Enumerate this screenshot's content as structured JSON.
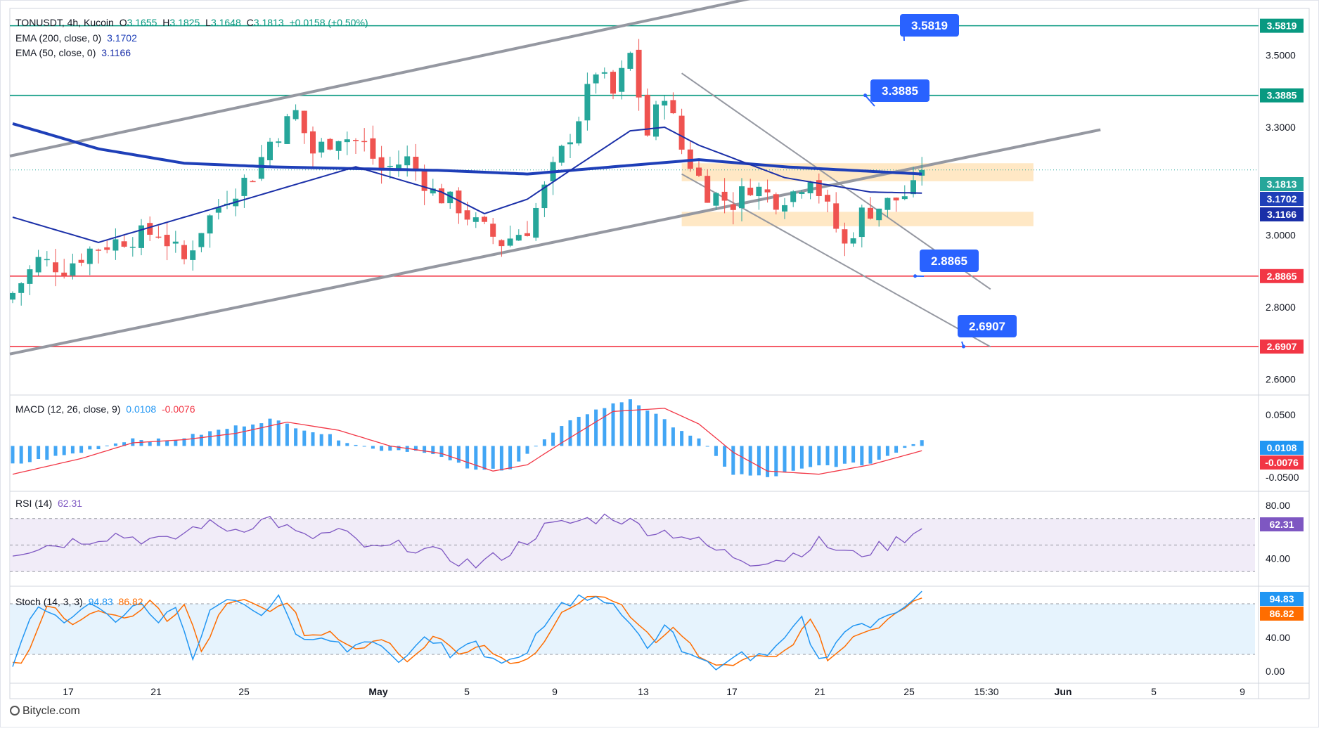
{
  "header": {
    "symbol": "TONUSDT, 4h, Kucoin",
    "open_label": "O",
    "open": "3.1655",
    "high_label": "H",
    "high": "3.1825",
    "low_label": "L",
    "low": "3.1648",
    "close_label": "C",
    "close": "3.1813",
    "change": "+0.0158 (+0.50%)",
    "ema200_label": "EMA (200, close, 0)",
    "ema200_value": "3.1702",
    "ema50_label": "EMA (50, close, 0)",
    "ema50_value": "3.1166"
  },
  "indicators": {
    "macd_label": "MACD (12, 26, close, 9)",
    "macd_value": "0.0108",
    "macd_signal": "-0.0076",
    "rsi_label": "RSI (14)",
    "rsi_value": "62.31",
    "stoch_label": "Stoch (14, 3, 3)",
    "stoch_k": "94.83",
    "stoch_d": "86.82"
  },
  "credit": "Bitycle.com",
  "colors": {
    "up": "#26a69a",
    "down": "#ef5350",
    "ema200": "#1e3fb8",
    "ema50": "#1a2fa8",
    "channel": "#9598a1",
    "resistance": "#089981",
    "support": "#f23645",
    "callout": "#2962ff",
    "zone": "#ffe0b2",
    "rsi": "#7e57c2",
    "stoch_k": "#2196f3",
    "stoch_d": "#ff6d00"
  },
  "chart_data": [
    {
      "type": "candlestick",
      "title": "TONUSDT, 4h, Kucoin",
      "x_ticks": [
        "17",
        "21",
        "25",
        "May",
        "5",
        "9",
        "13",
        "17",
        "21",
        "25",
        "15:30",
        "Jun",
        "5",
        "9"
      ],
      "y_ticks": [
        "2.6000",
        "2.8000",
        "3.0000",
        "3.3000",
        "3.5000"
      ],
      "ylim": [
        2.56,
        3.63
      ],
      "ohlc_last": {
        "open": 3.1655,
        "high": 3.1825,
        "low": 3.1648,
        "close": 3.1813
      },
      "close_path": [
        [
          0,
          2.84
        ],
        [
          3,
          2.93
        ],
        [
          6,
          2.91
        ],
        [
          9,
          2.96
        ],
        [
          13,
          2.99
        ],
        [
          17,
          3.01
        ],
        [
          20,
          2.93
        ],
        [
          22,
          3.02
        ],
        [
          25,
          3.11
        ],
        [
          28,
          3.17
        ],
        [
          30,
          3.26
        ],
        [
          33,
          3.34
        ],
        [
          35,
          3.23
        ],
        [
          38,
          3.28
        ],
        [
          41,
          3.25
        ],
        [
          43,
          3.18
        ],
        [
          46,
          3.21
        ],
        [
          49,
          3.12
        ],
        [
          52,
          3.08
        ],
        [
          54,
          3.03
        ],
        [
          57,
          2.98
        ],
        [
          60,
          3.02
        ],
        [
          63,
          3.18
        ],
        [
          66,
          3.33
        ],
        [
          68,
          3.46
        ],
        [
          70,
          3.39
        ],
        [
          72,
          3.5
        ],
        [
          74,
          3.28
        ],
        [
          76,
          3.4
        ],
        [
          78,
          3.24
        ],
        [
          81,
          3.12
        ],
        [
          84,
          3.09
        ],
        [
          86,
          3.14
        ],
        [
          89,
          3.1
        ],
        [
          91,
          3.12
        ],
        [
          93,
          3.17
        ],
        [
          95,
          3.07
        ],
        [
          97,
          2.97
        ],
        [
          99,
          3.06
        ],
        [
          101,
          3.08
        ],
        [
          103,
          3.1
        ],
        [
          105,
          3.125
        ],
        [
          106,
          3.18
        ]
      ],
      "ema200": [
        [
          0,
          3.31
        ],
        [
          10,
          3.24
        ],
        [
          20,
          3.2
        ],
        [
          30,
          3.19
        ],
        [
          50,
          3.18
        ],
        [
          60,
          3.17
        ],
        [
          70,
          3.19
        ],
        [
          80,
          3.21
        ],
        [
          90,
          3.19
        ],
        [
          106,
          3.17
        ]
      ],
      "ema50": [
        [
          0,
          3.05
        ],
        [
          10,
          2.98
        ],
        [
          20,
          3.05
        ],
        [
          30,
          3.12
        ],
        [
          40,
          3.19
        ],
        [
          50,
          3.12
        ],
        [
          55,
          3.06
        ],
        [
          60,
          3.1
        ],
        [
          65,
          3.18
        ],
        [
          72,
          3.29
        ],
        [
          76,
          3.3
        ],
        [
          80,
          3.25
        ],
        [
          90,
          3.16
        ],
        [
          100,
          3.12
        ],
        [
          106,
          3.117
        ]
      ],
      "levels": [
        {
          "value": 3.5819,
          "label": "3.5819",
          "kind": "resistance"
        },
        {
          "value": 3.3885,
          "label": "3.3885",
          "kind": "resistance"
        },
        {
          "value": 3.1813,
          "label": "3.1813",
          "kind": "last"
        },
        {
          "value": 3.1702,
          "label": "3.1702",
          "kind": "ema200"
        },
        {
          "value": 3.1166,
          "label": "3.1166",
          "kind": "ema50"
        },
        {
          "value": 2.8865,
          "label": "2.8865",
          "kind": "support"
        },
        {
          "value": 2.6907,
          "label": "2.6907",
          "kind": "support"
        }
      ],
      "zones": [
        {
          "from": 3.15,
          "to": 3.2
        },
        {
          "from": 3.025,
          "to": 3.065
        }
      ],
      "channel_up": {
        "lower": [
          [
            0,
            2.67
          ],
          [
            106,
            3.19
          ]
        ],
        "upper": [
          [
            0,
            3.22
          ],
          [
            100,
            3.72
          ]
        ],
        "extend_to": 126
      },
      "channel_down": {
        "upper": [
          [
            78,
            3.45
          ],
          [
            114,
            2.85
          ]
        ],
        "lower": [
          [
            78,
            3.17
          ],
          [
            114,
            2.69
          ]
        ]
      }
    },
    {
      "type": "bar",
      "title": "MACD (12, 26, close, 9)",
      "y_ticks": [
        "0.0500",
        "-0.0500"
      ],
      "ylim": [
        -0.07,
        0.08
      ],
      "last": {
        "macd": 0.0108,
        "signal": -0.0076
      }
    },
    {
      "type": "line",
      "title": "RSI (14)",
      "y_ticks": [
        "80.00",
        "40.00"
      ],
      "ylim": [
        20,
        90
      ],
      "band": [
        30,
        70
      ],
      "last": 62.31
    },
    {
      "type": "line",
      "title": "Stoch (14, 3, 3)",
      "y_ticks": [
        "40.00",
        "0.00"
      ],
      "ylim": [
        -10,
        100
      ],
      "band": [
        20,
        80
      ],
      "last": {
        "k": 94.83,
        "d": 86.82
      }
    }
  ]
}
